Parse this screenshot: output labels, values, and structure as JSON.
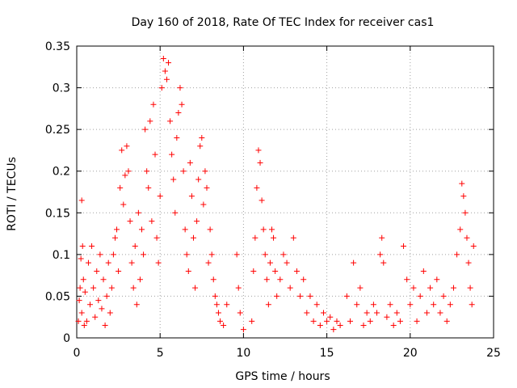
{
  "chart_data": {
    "type": "scatter",
    "title": "Day 160 of 2018, Rate Of TEC Index for receiver cas1",
    "xlabel": "GPS time / hours",
    "ylabel": "ROTI / TECUs",
    "xlim": [
      0,
      25
    ],
    "ylim": [
      0,
      0.35
    ],
    "xticks": [
      0,
      5,
      10,
      15,
      20,
      25
    ],
    "xtick_labels": [
      "0",
      "5",
      "10",
      "15",
      "20",
      "25"
    ],
    "yticks": [
      0,
      0.05,
      0.1,
      0.15,
      0.2,
      0.25,
      0.3,
      0.35
    ],
    "ytick_labels": [
      "0",
      "0.05",
      "0.1",
      "0.15",
      "0.2",
      "0.25",
      "0.3",
      "0.35"
    ],
    "grid": true,
    "marker": "plus",
    "color": "#ff0000",
    "series": [
      {
        "name": "cas1",
        "points": [
          [
            0.1,
            0.02
          ],
          [
            0.15,
            0.045
          ],
          [
            0.2,
            0.06
          ],
          [
            0.25,
            0.095
          ],
          [
            0.3,
            0.03
          ],
          [
            0.35,
            0.11
          ],
          [
            0.3,
            0.165
          ],
          [
            0.4,
            0.07
          ],
          [
            0.45,
            0.015
          ],
          [
            0.5,
            0.055
          ],
          [
            0.6,
            0.02
          ],
          [
            0.7,
            0.09
          ],
          [
            0.8,
            0.04
          ],
          [
            0.9,
            0.11
          ],
          [
            1.0,
            0.06
          ],
          [
            1.1,
            0.025
          ],
          [
            1.2,
            0.08
          ],
          [
            1.3,
            0.045
          ],
          [
            1.4,
            0.1
          ],
          [
            1.5,
            0.035
          ],
          [
            1.6,
            0.07
          ],
          [
            1.7,
            0.015
          ],
          [
            1.8,
            0.05
          ],
          [
            1.9,
            0.09
          ],
          [
            2.0,
            0.03
          ],
          [
            2.1,
            0.06
          ],
          [
            2.2,
            0.1
          ],
          [
            2.3,
            0.12
          ],
          [
            2.4,
            0.13
          ],
          [
            2.5,
            0.08
          ],
          [
            2.6,
            0.18
          ],
          [
            2.7,
            0.225
          ],
          [
            2.8,
            0.16
          ],
          [
            2.9,
            0.195
          ],
          [
            3.0,
            0.23
          ],
          [
            3.1,
            0.2
          ],
          [
            3.2,
            0.14
          ],
          [
            3.3,
            0.09
          ],
          [
            3.4,
            0.06
          ],
          [
            3.5,
            0.11
          ],
          [
            3.6,
            0.04
          ],
          [
            3.7,
            0.15
          ],
          [
            3.8,
            0.07
          ],
          [
            3.9,
            0.13
          ],
          [
            4.0,
            0.1
          ],
          [
            4.1,
            0.25
          ],
          [
            4.2,
            0.2
          ],
          [
            4.3,
            0.18
          ],
          [
            4.4,
            0.26
          ],
          [
            4.5,
            0.14
          ],
          [
            4.6,
            0.28
          ],
          [
            4.7,
            0.22
          ],
          [
            4.8,
            0.12
          ],
          [
            4.9,
            0.09
          ],
          [
            5.0,
            0.17
          ],
          [
            5.1,
            0.3
          ],
          [
            5.2,
            0.335
          ],
          [
            5.3,
            0.32
          ],
          [
            5.4,
            0.31
          ],
          [
            5.5,
            0.33
          ],
          [
            5.6,
            0.26
          ],
          [
            5.7,
            0.22
          ],
          [
            5.8,
            0.19
          ],
          [
            5.9,
            0.15
          ],
          [
            6.0,
            0.24
          ],
          [
            6.1,
            0.27
          ],
          [
            6.2,
            0.3
          ],
          [
            6.3,
            0.28
          ],
          [
            6.4,
            0.2
          ],
          [
            6.5,
            0.13
          ],
          [
            6.6,
            0.1
          ],
          [
            6.7,
            0.08
          ],
          [
            6.8,
            0.21
          ],
          [
            6.9,
            0.17
          ],
          [
            7.0,
            0.12
          ],
          [
            7.1,
            0.06
          ],
          [
            7.2,
            0.14
          ],
          [
            7.3,
            0.19
          ],
          [
            7.4,
            0.23
          ],
          [
            7.5,
            0.24
          ],
          [
            7.6,
            0.16
          ],
          [
            7.7,
            0.2
          ],
          [
            7.8,
            0.18
          ],
          [
            7.9,
            0.09
          ],
          [
            8.0,
            0.13
          ],
          [
            8.1,
            0.1
          ],
          [
            8.2,
            0.07
          ],
          [
            8.3,
            0.05
          ],
          [
            8.4,
            0.04
          ],
          [
            8.5,
            0.03
          ],
          [
            8.6,
            0.02
          ],
          [
            8.8,
            0.015
          ],
          [
            9.0,
            0.04
          ],
          [
            9.6,
            0.1
          ],
          [
            9.7,
            0.06
          ],
          [
            9.8,
            0.03
          ],
          [
            10.0,
            0.01
          ],
          [
            10.5,
            0.02
          ],
          [
            10.6,
            0.08
          ],
          [
            10.7,
            0.12
          ],
          [
            10.8,
            0.18
          ],
          [
            10.9,
            0.225
          ],
          [
            11.0,
            0.21
          ],
          [
            11.1,
            0.165
          ],
          [
            11.2,
            0.13
          ],
          [
            11.3,
            0.1
          ],
          [
            11.4,
            0.07
          ],
          [
            11.5,
            0.04
          ],
          [
            11.6,
            0.09
          ],
          [
            11.7,
            0.13
          ],
          [
            11.8,
            0.12
          ],
          [
            11.9,
            0.08
          ],
          [
            12.0,
            0.05
          ],
          [
            12.2,
            0.07
          ],
          [
            12.4,
            0.1
          ],
          [
            12.6,
            0.09
          ],
          [
            12.8,
            0.06
          ],
          [
            13.0,
            0.12
          ],
          [
            13.2,
            0.08
          ],
          [
            13.4,
            0.05
          ],
          [
            13.6,
            0.07
          ],
          [
            13.8,
            0.03
          ],
          [
            14.0,
            0.05
          ],
          [
            14.2,
            0.02
          ],
          [
            14.4,
            0.04
          ],
          [
            14.6,
            0.015
          ],
          [
            14.8,
            0.03
          ],
          [
            15.0,
            0.02
          ],
          [
            15.2,
            0.025
          ],
          [
            15.4,
            0.01
          ],
          [
            15.6,
            0.02
          ],
          [
            15.8,
            0.015
          ],
          [
            16.2,
            0.05
          ],
          [
            16.4,
            0.02
          ],
          [
            16.6,
            0.09
          ],
          [
            16.8,
            0.04
          ],
          [
            17.0,
            0.06
          ],
          [
            17.2,
            0.015
          ],
          [
            17.4,
            0.03
          ],
          [
            17.6,
            0.02
          ],
          [
            17.8,
            0.04
          ],
          [
            18.0,
            0.03
          ],
          [
            18.2,
            0.1
          ],
          [
            18.3,
            0.12
          ],
          [
            18.4,
            0.09
          ],
          [
            18.6,
            0.025
          ],
          [
            18.8,
            0.04
          ],
          [
            19.0,
            0.015
          ],
          [
            19.2,
            0.03
          ],
          [
            19.4,
            0.02
          ],
          [
            19.6,
            0.11
          ],
          [
            19.8,
            0.07
          ],
          [
            20.0,
            0.04
          ],
          [
            20.2,
            0.06
          ],
          [
            20.4,
            0.02
          ],
          [
            20.6,
            0.05
          ],
          [
            20.8,
            0.08
          ],
          [
            21.0,
            0.03
          ],
          [
            21.2,
            0.06
          ],
          [
            21.4,
            0.04
          ],
          [
            21.6,
            0.07
          ],
          [
            21.8,
            0.03
          ],
          [
            22.0,
            0.05
          ],
          [
            22.2,
            0.02
          ],
          [
            22.4,
            0.04
          ],
          [
            22.6,
            0.06
          ],
          [
            22.8,
            0.1
          ],
          [
            23.0,
            0.13
          ],
          [
            23.1,
            0.185
          ],
          [
            23.2,
            0.17
          ],
          [
            23.3,
            0.15
          ],
          [
            23.4,
            0.12
          ],
          [
            23.5,
            0.09
          ],
          [
            23.6,
            0.06
          ],
          [
            23.7,
            0.04
          ],
          [
            23.8,
            0.11
          ]
        ]
      }
    ]
  }
}
